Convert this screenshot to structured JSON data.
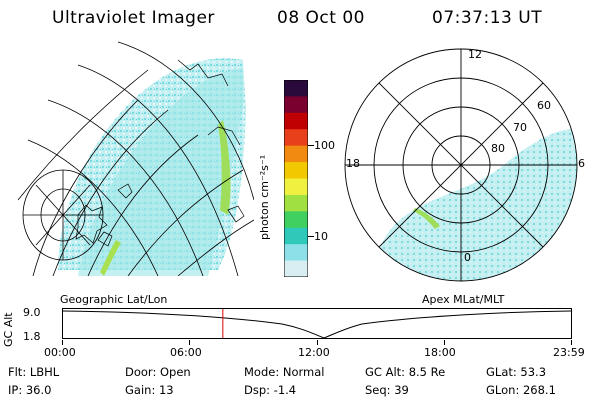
{
  "header": {
    "instrument": "Ultraviolet Imager",
    "date": "08 Oct 00",
    "time": "07:37:13 UT"
  },
  "colorbar": {
    "unit_label": "photon cm⁻²s⁻¹",
    "ticks": [
      "100",
      "10"
    ],
    "colors": [
      "#2a0a3a",
      "#7a0030",
      "#c00000",
      "#e8401a",
      "#f08a10",
      "#f2c800",
      "#f0f040",
      "#a0e040",
      "#40d060",
      "#30c8b8",
      "#8ee0e8",
      "#d8eef2"
    ]
  },
  "left_panel": {
    "caption": "Geographic Lat/Lon"
  },
  "right_panel": {
    "caption": "Apex MLat/MLT",
    "mlt_labels": [
      "12",
      "18",
      "6",
      "0"
    ],
    "mlat_labels": [
      "60",
      "70",
      "80"
    ]
  },
  "timeline": {
    "axis_label": "GC Alt",
    "y_ticks": [
      "9.0",
      "1.8"
    ],
    "x_ticks": [
      "00:00",
      "06:00",
      "12:00",
      "18:00",
      "23:59"
    ],
    "current_time_fraction": 0.316
  },
  "info": {
    "flt": "Flt: LBHL",
    "door": "Door: Open",
    "mode": "Mode: Normal",
    "gc_alt": "GC Alt: 8.5 Re",
    "glat": "GLat:  53.3",
    "ip": "IP: 36.0",
    "gain": "Gain: 13",
    "dsp": "Dsp:   -1.4",
    "seq": "Seq: 39",
    "glon": "GLon: 268.1"
  }
}
